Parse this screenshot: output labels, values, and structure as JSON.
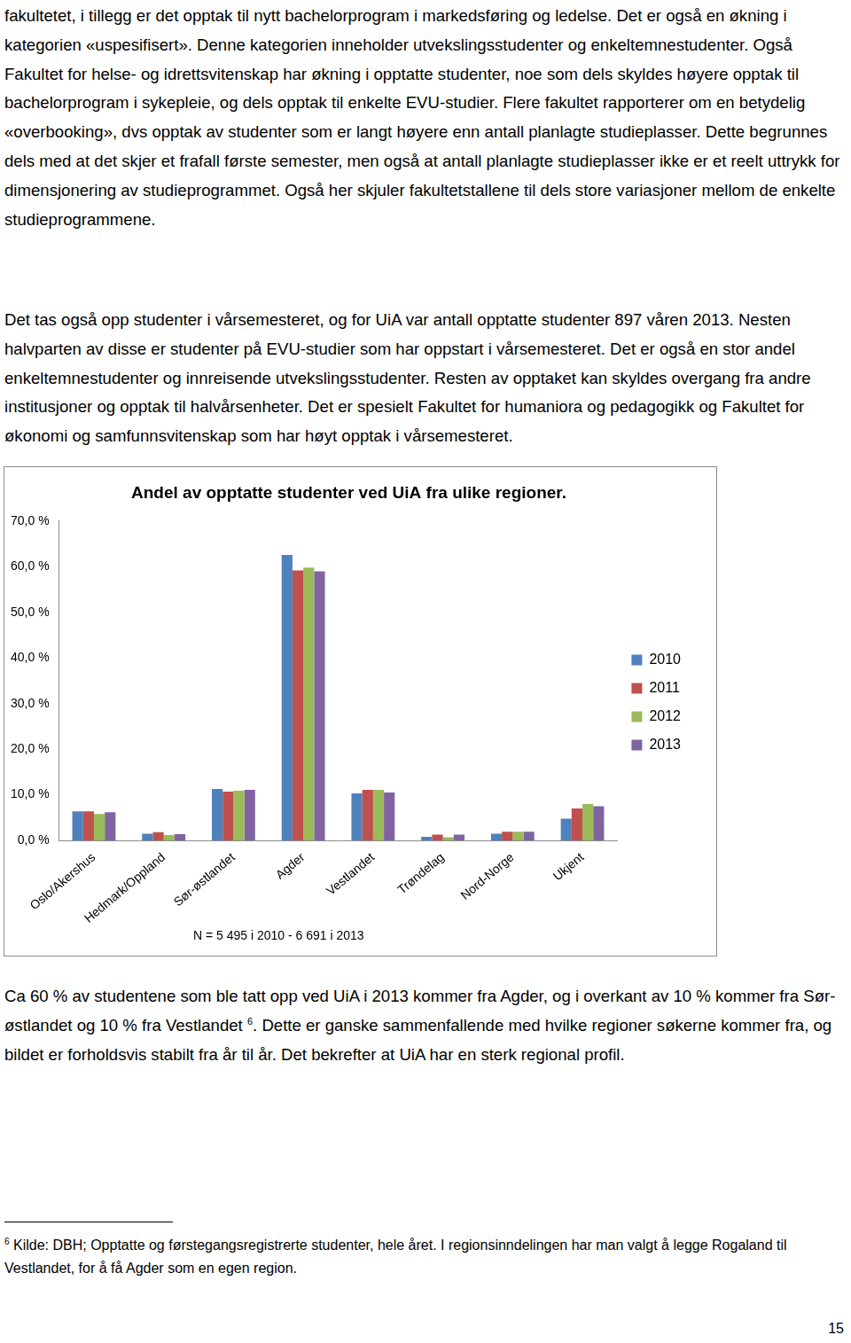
{
  "paragraphs_top": [
    [
      "fakultetet, i tillegg er det opptak til nytt bachelorprogram i markedsføring og ledelse. Det er også en økning i kategorien «uspesifisert». Denne kategorien inneholder utvekslingsstudenter og enkeltemnestudenter. Også Fakultet for helse- og idrettsvitenskap har økning i opptatte studenter, noe som dels skyldes høyere opptak til bachelorprogram i sykepleie, og dels opptak til enkelte EVU-studier. Flere fakultet rapporterer om en betydelig «overbooking», dvs opptak av studenter som er langt høyere enn antall planlagte studieplasser. Dette begrunnes dels med at det skjer et frafall første semester, men også at antall planlagte studieplasser ikke er et reelt uttrykk for dimensjonering av studieprogrammet. Også her skjuler fakultetstallene til dels store variasjoner mellom de enkelte studieprogrammene."
    ],
    [
      "Det tas også opp studenter i vårsemesteret, og for UiA var antall opptatte studenter 897 våren 2013. Nesten halvparten av disse er studenter på EVU-studier som har oppstart i vårsemesteret. Det er også en stor andel enkeltemnestudenter og  innreisende utvekslingsstudenter. Resten av opptaket kan skyldes overgang fra andre institusjoner og opptak til halvårsenheter. Det er spesielt Fakultet for humaniora og pedagogikk og Fakultet for økonomi og samfunnsvitenskap som har høyt opptak i vårsemesteret."
    ]
  ],
  "chart_data": {
    "type": "bar",
    "title": "Andel av opptatte studenter ved UiA fra ulike regioner.",
    "annotation": "N = 5 495 i 2010  - 6 691 i 2013",
    "categories": [
      "Oslo/Akershus",
      "Hedmark/Oppland",
      "Sør-østlandet",
      "Agder",
      "Vestlandet",
      "Trøndelag",
      "Nord-Norge",
      "Ukjent"
    ],
    "series": [
      {
        "name": "2010",
        "color": "#4f81bd",
        "values": [
          6.4,
          1.5,
          11.3,
          62.6,
          10.3,
          0.8,
          1.5,
          4.8
        ]
      },
      {
        "name": "2011",
        "color": "#c0504d",
        "values": [
          6.4,
          1.8,
          10.7,
          59.2,
          11.1,
          1.3,
          1.9,
          7.0
        ]
      },
      {
        "name": "2012",
        "color": "#9bbb59",
        "values": [
          5.8,
          1.2,
          10.9,
          59.8,
          11.1,
          0.7,
          1.9,
          8.0
        ]
      },
      {
        "name": "2013",
        "color": "#8064a2",
        "values": [
          6.2,
          1.4,
          11.1,
          59.0,
          10.5,
          1.3,
          1.9,
          7.5
        ]
      }
    ],
    "ylim": [
      0,
      70
    ],
    "yticks": [
      {
        "value": 0,
        "label": "0,0 %"
      },
      {
        "value": 10,
        "label": "10,0 %"
      },
      {
        "value": 20,
        "label": "20,0 %"
      },
      {
        "value": 30,
        "label": "30,0 %"
      },
      {
        "value": 40,
        "label": "40,0 %"
      },
      {
        "value": 50,
        "label": "50,0 %"
      },
      {
        "value": 60,
        "label": "60,0 %"
      },
      {
        "value": 70,
        "label": "70,0 %"
      }
    ],
    "grid": false,
    "legend": "right"
  },
  "paragraphs_bottom": [
    [
      "Ca 60 % av studentene som ble tatt opp ved UiA i 2013 kommer fra Agder, og i overkant av 10 % kommer fra Sør-østlandet og 10 % fra Vestlandet ",
      {
        "sup": "6"
      },
      ". Dette er ganske sammenfallende med hvilke regioner søkerne kommer fra, og bildet er forholdsvis stabilt fra år til år. Det bekrefter at UiA har en sterk regional profil."
    ]
  ],
  "footnote": {
    "mark": "6",
    "text": " Kilde: DBH; Opptatte og førstegangsregistrerte studenter, hele året. I regionsinndelingen har man valgt å legge Rogaland til Vestlandet, for å få Agder som en egen region."
  },
  "page_number": "15"
}
